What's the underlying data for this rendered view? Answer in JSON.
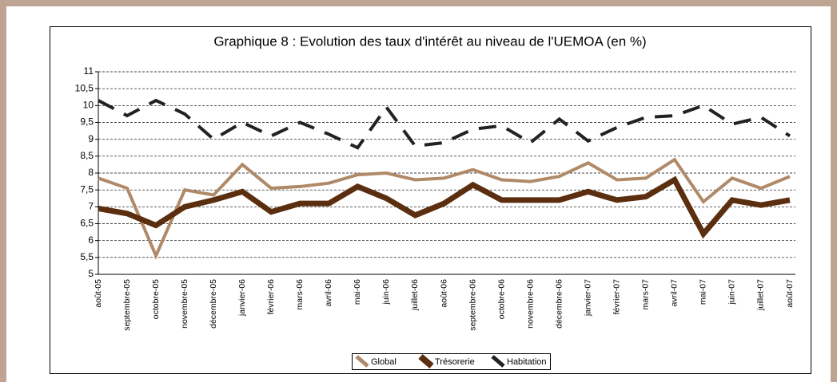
{
  "chart_data": {
    "type": "line",
    "title": "Graphique 8 : Evolution des taux d'intérêt au niveau de l'UEMOA (en %)",
    "categories": [
      "août-05",
      "septembre-05",
      "octobre-05",
      "novembre-05",
      "décembre-05",
      "janvier-06",
      "février-06",
      "mars-06",
      "avril-06",
      "mai-06",
      "juin-06",
      "juillet-06",
      "août-06",
      "septembre-06",
      "octobre-06",
      "novembre-06",
      "décembre-06",
      "janvier-07",
      "février-07",
      "mars-07",
      "avril-07",
      "mai-07",
      "juin-07",
      "juillet-07",
      "août-07"
    ],
    "series": [
      {
        "name": "Global",
        "color": "#b08a68",
        "width": 4,
        "dash": false,
        "values": [
          7.85,
          7.55,
          5.55,
          7.5,
          7.35,
          8.25,
          7.55,
          7.6,
          7.7,
          7.95,
          8.0,
          7.8,
          7.85,
          8.1,
          7.8,
          7.75,
          7.9,
          8.3,
          7.8,
          7.85,
          8.4,
          7.15,
          7.85,
          7.55,
          7.9
        ]
      },
      {
        "name": "Trésorerie",
        "color": "#5a2e0e",
        "width": 7,
        "dash": false,
        "values": [
          6.95,
          6.8,
          6.45,
          7.0,
          7.2,
          7.45,
          6.85,
          7.1,
          7.1,
          7.6,
          7.25,
          6.75,
          7.1,
          7.65,
          7.2,
          7.2,
          7.2,
          7.45,
          7.2,
          7.3,
          7.8,
          6.2,
          7.2,
          7.05,
          7.2
        ]
      },
      {
        "name": "Habitation",
        "color": "#222222",
        "width": 4,
        "dash": true,
        "values": [
          10.15,
          9.7,
          10.15,
          9.75,
          9.0,
          9.5,
          9.1,
          9.5,
          9.15,
          8.75,
          9.95,
          8.8,
          8.9,
          9.3,
          9.4,
          8.9,
          9.6,
          8.95,
          9.35,
          9.65,
          9.7,
          10.0,
          9.45,
          9.65,
          9.1
        ]
      }
    ],
    "ylim": [
      5,
      11
    ],
    "yticks": [
      5,
      {
        "value": 5.5,
        "label": "5,5"
      },
      6,
      {
        "value": 6.5,
        "label": "6,5"
      },
      7,
      {
        "value": 7.5,
        "label": "7,5"
      },
      8,
      {
        "value": 8.5,
        "label": "8,5"
      },
      9,
      {
        "value": 9.5,
        "label": "9,5"
      },
      10,
      {
        "value": 10.5,
        "label": "10,5"
      },
      11
    ],
    "grid": true,
    "legend": "bottom"
  }
}
